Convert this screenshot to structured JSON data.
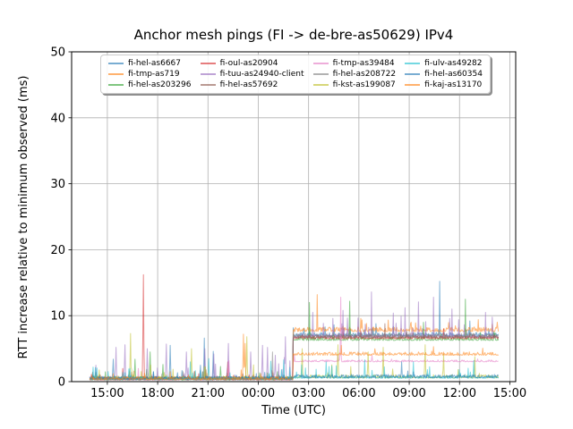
{
  "chart_data": {
    "type": "line",
    "title": "Anchor mesh pings (FI -> de-bre-as50629) IPv4",
    "xlabel": "Time (UTC)",
    "ylabel": "RTT increase relative to minimum observed (ms)",
    "ylim": [
      0,
      50
    ],
    "yticks": [
      0,
      10,
      20,
      30,
      40,
      50
    ],
    "xlim_hours": [
      12.87,
      39.35
    ],
    "xticks": [
      {
        "t": 15,
        "label": "15:00"
      },
      {
        "t": 18,
        "label": "18:00"
      },
      {
        "t": 21,
        "label": "21:00"
      },
      {
        "t": 24,
        "label": "00:00"
      },
      {
        "t": 27,
        "label": "03:00"
      },
      {
        "t": 30,
        "label": "06:00"
      },
      {
        "t": 33,
        "label": "09:00"
      },
      {
        "t": 36,
        "label": "12:00"
      },
      {
        "t": 39,
        "label": "15:00"
      }
    ],
    "grid": true,
    "legend_position": "upper center inside axes, 4 columns, 3 rows",
    "line_alpha": 0.55,
    "data_start_hour": 13.95,
    "data_end_hour": 38.3,
    "step_hour": 26.05,
    "step_note": "Most Helsinki-area series jump from ~0.4 ms to 3-8 ms at ~02:00 UTC",
    "series": [
      {
        "name": "fi-hel-as6667",
        "color": "#1f77b4",
        "base_before": 0.25,
        "base_after": 6.9,
        "jitter_before": 0.5,
        "jitter_after": 0.55,
        "spike_p": 0.03,
        "spike_amp": 1.3,
        "spikes": [
          [
            15.36,
            3.4
          ],
          [
            18.74,
            5.5
          ],
          [
            20.78,
            6.6
          ],
          [
            21.3,
            4.6
          ],
          [
            28.5,
            8.6
          ],
          [
            31.0,
            8.8
          ],
          [
            34.8,
            15.2
          ],
          [
            36.6,
            9.2
          ]
        ]
      },
      {
        "name": "fi-tmp-as719",
        "color": "#ff7f0e",
        "base_before": 0.3,
        "base_after": 7.6,
        "jitter_before": 0.5,
        "jitter_after": 0.7,
        "spike_p": 0.035,
        "spike_amp": 1.3,
        "spikes": [
          [
            23.1,
            7.2
          ],
          [
            23.2,
            5.8
          ],
          [
            27.5,
            13.2
          ],
          [
            30.1,
            9.6
          ],
          [
            33.1,
            9.0
          ],
          [
            37.1,
            9.4
          ]
        ]
      },
      {
        "name": "fi-hel-as203296",
        "color": "#2ca02c",
        "base_before": 0.25,
        "base_after": 6.25,
        "jitter_before": 0.5,
        "jitter_after": 0.5,
        "spike_p": 0.03,
        "spike_amp": 1.2,
        "spikes": [
          [
            16.66,
            3.4
          ],
          [
            17.55,
            4.5
          ],
          [
            18.3,
            2.6
          ],
          [
            21.75,
            2.3
          ],
          [
            27.05,
            12.0
          ],
          [
            29.45,
            12.2
          ],
          [
            33.85,
            9.0
          ],
          [
            36.35,
            12.5
          ]
        ]
      },
      {
        "name": "fi-oul-as20904",
        "color": "#d62728",
        "base_before": 0.25,
        "base_after": 6.5,
        "jitter_before": 0.45,
        "jitter_after": 0.5,
        "spike_p": 0.025,
        "spike_amp": 1.1,
        "spikes": [
          [
            15.9,
            2.0
          ],
          [
            17.15,
            16.2
          ],
          [
            22.17,
            3.0
          ],
          [
            29.05,
            8.0
          ],
          [
            35.05,
            8.0
          ]
        ]
      },
      {
        "name": "fi-tuu-as24940-client",
        "color": "#9467bd",
        "base_before": 0.35,
        "base_after": 6.7,
        "jitter_before": 0.5,
        "jitter_after": 0.55,
        "spike_p": 0.05,
        "spike_amp": 3.2,
        "spikes": [
          [
            14.3,
            2.5
          ],
          [
            15.5,
            5.2
          ],
          [
            16.05,
            5.6
          ],
          [
            17.4,
            5.0
          ],
          [
            18.5,
            5.7
          ],
          [
            19.7,
            4.5
          ],
          [
            20.8,
            5.0
          ],
          [
            21.35,
            4.2
          ],
          [
            22.2,
            5.8
          ],
          [
            23.55,
            4.5
          ],
          [
            24.25,
            5.5
          ],
          [
            24.55,
            5.2
          ],
          [
            25.0,
            4.0
          ],
          [
            25.6,
            6.8
          ],
          [
            27.25,
            10.5
          ],
          [
            28.45,
            9.6
          ],
          [
            29.05,
            10.8
          ],
          [
            30.75,
            13.6
          ],
          [
            32.05,
            10.4
          ],
          [
            32.75,
            11.2
          ],
          [
            33.55,
            12.1
          ],
          [
            34.45,
            12.8
          ],
          [
            35.55,
            11.0
          ],
          [
            35.95,
            9.4
          ],
          [
            37.55,
            10.5
          ],
          [
            37.95,
            9.8
          ]
        ]
      },
      {
        "name": "fi-hel-as57692",
        "color": "#8c564b",
        "base_before": 0.3,
        "base_after": 6.6,
        "jitter_before": 0.45,
        "jitter_after": 0.5,
        "spike_p": 0.025,
        "spike_amp": 1.1,
        "spikes": [
          [
            20.9,
            1.8
          ],
          [
            31.55,
            8.8
          ]
        ]
      },
      {
        "name": "fi-tmp-as39484",
        "color": "#e377c2",
        "base_before": 0.25,
        "base_after": 3.0,
        "jitter_before": 0.4,
        "jitter_after": 0.3,
        "spike_p": 0.015,
        "spike_amp": 0.9,
        "spikes": [
          [
            16.85,
            2.0
          ],
          [
            22.25,
            3.2
          ],
          [
            28.9,
            12.8
          ]
        ]
      },
      {
        "name": "fi-hel-as208722",
        "color": "#7f7f7f",
        "base_before": 0.3,
        "base_after": 6.8,
        "jitter_before": 0.45,
        "jitter_after": 0.5,
        "spike_p": 0.03,
        "spike_amp": 1.2,
        "spikes": [
          [
            19.5,
            1.5
          ],
          [
            24.85,
            4.5
          ]
        ]
      },
      {
        "name": "fi-kst-as199087",
        "color": "#bcbd22",
        "base_before": 0.35,
        "base_after": 0.55,
        "jitter_before": 0.5,
        "jitter_after": 0.5,
        "spike_p": 0.04,
        "spike_amp": 2.2,
        "spikes": [
          [
            16.4,
            7.3
          ],
          [
            20.0,
            5.0
          ],
          [
            23.3,
            6.8
          ],
          [
            26.6,
            5.0
          ],
          [
            28.75,
            5.6
          ],
          [
            30.55,
            4.5
          ],
          [
            31.45,
            5.2
          ],
          [
            33.95,
            5.6
          ],
          [
            35.05,
            4.2
          ],
          [
            36.9,
            3.8
          ]
        ]
      },
      {
        "name": "fi-ulv-as49282",
        "color": "#17becf",
        "base_before": 0.3,
        "base_after": 0.5,
        "jitter_before": 0.45,
        "jitter_after": 0.45,
        "spike_p": 0.04,
        "spike_amp": 1.8,
        "spikes": [
          [
            14.16,
            2.2
          ],
          [
            19.95,
            3.0
          ],
          [
            21.05,
            3.5
          ],
          [
            24.76,
            3.1
          ],
          [
            25.5,
            3.3
          ],
          [
            28.05,
            3.0
          ],
          [
            30.35,
            3.3
          ],
          [
            33.25,
            3.0
          ],
          [
            36.85,
            3.2
          ]
        ]
      },
      {
        "name": "fi-hel-as60354",
        "color": "#1f77b4",
        "base_before": 0.35,
        "base_after": 0.6,
        "jitter_before": 0.5,
        "jitter_after": 0.5,
        "spike_p": 0.03,
        "spike_amp": 1.2,
        "spikes": [
          [
            20.55,
            2.5
          ],
          [
            32.55,
            3.0
          ]
        ]
      },
      {
        "name": "fi-kaj-as13170",
        "color": "#ff7f0e",
        "base_before": 0.3,
        "base_after": 4.0,
        "jitter_before": 0.45,
        "jitter_after": 0.5,
        "spike_p": 0.02,
        "spike_amp": 1.0,
        "spikes": [
          [
            28.95,
            5.5
          ],
          [
            34.45,
            5.3
          ]
        ]
      }
    ]
  }
}
